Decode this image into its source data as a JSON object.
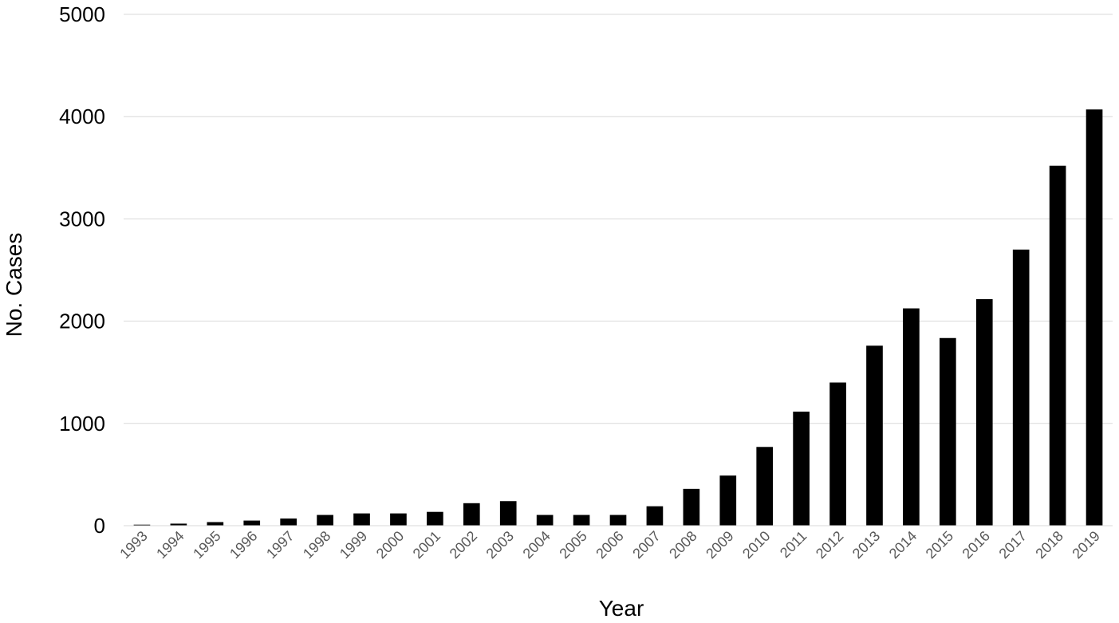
{
  "chart_data": {
    "type": "bar",
    "title": "",
    "xlabel": "Year",
    "ylabel": "No. Cases",
    "ylim": [
      0,
      5000
    ],
    "yticks": [
      "0",
      "1000",
      "2000",
      "3000",
      "4000",
      "5000"
    ],
    "grid": true,
    "legend": "none",
    "bar_color": "#000000",
    "grid_color": "#d9d9d9",
    "categories": [
      "1993",
      "1994",
      "1995",
      "1996",
      "1997",
      "1998",
      "1999",
      "2000",
      "2001",
      "2002",
      "2003",
      "2004",
      "2005",
      "2006",
      "2007",
      "2008",
      "2009",
      "2010",
      "2011",
      "2012",
      "2013",
      "2014",
      "2015",
      "2016",
      "2017",
      "2018",
      "2019"
    ],
    "values": [
      10,
      20,
      35,
      50,
      70,
      105,
      120,
      120,
      135,
      220,
      240,
      105,
      105,
      105,
      190,
      360,
      490,
      770,
      1115,
      1400,
      1760,
      2125,
      1835,
      2215,
      2700,
      3520,
      4070
    ]
  }
}
